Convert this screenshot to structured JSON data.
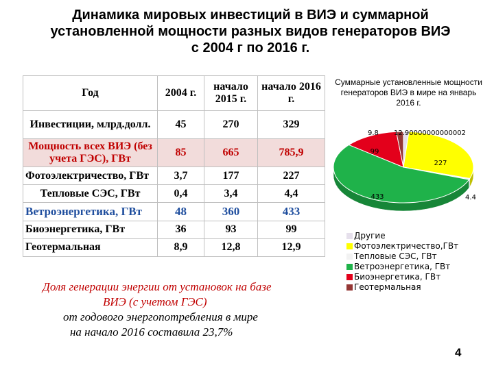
{
  "title": {
    "line1": "Динамика  мировых инвестиций в ВИЭ и суммарной",
    "line2": "установленной мощности разных видов генераторов ВИЭ",
    "line3": "с 2004 г по 2016 г."
  },
  "table": {
    "headers": [
      "Год",
      "2004 г.",
      "начало 2015 г.",
      "начало 2016 г."
    ],
    "rows": [
      {
        "label": "Инвестиции, млрд.долл.",
        "v2004": "45",
        "v2015": "270",
        "v2016": "329"
      },
      {
        "label": "Мощность всех ВИЭ (без учета ГЭС), ГВт",
        "v2004": "85",
        "v2015": "665",
        "v2016": "785,9"
      },
      {
        "label": "Фотоэлектричество, ГВт",
        "v2004": "3,7",
        "v2015": "177",
        "v2016": "227"
      },
      {
        "label": "Тепловые СЭС, ГВт",
        "v2004": "0,4",
        "v2015": "3,4",
        "v2016": "4,4"
      },
      {
        "label": "Ветроэнергетика, ГВт",
        "v2004": "48",
        "v2015": "360",
        "v2016": "433"
      },
      {
        "label": "Биоэнергетика, ГВт",
        "v2004": "36",
        "v2015": "93",
        "v2016": "99"
      },
      {
        "label": "Геотермальная",
        "v2004": "8,9",
        "v2015": "12,8",
        "v2016": "12,9"
      }
    ]
  },
  "note": {
    "line1": "Доля генерации энергии от установок на базе",
    "line2": "ВИЭ  (с учетом ГЭС)",
    "line3": "от годового энергопотребления в мире",
    "line4": "на начало 2016 составила 23,7%"
  },
  "page_number": "4",
  "chart_data": {
    "type": "pie",
    "title": "Суммарные установленные мощности генераторов ВИЭ  в мире на январь 2016 г.",
    "slices": [
      {
        "name": "Другие",
        "value": 9.8,
        "label": "9.8",
        "color": "#e6e0ec"
      },
      {
        "name": "Фотоэлектричество,ГВт",
        "value": 227,
        "label": "227",
        "color": "#ffff00"
      },
      {
        "name": "Тепловые СЭС, ГВт",
        "value": 4.4,
        "label": "4.4",
        "color": "#f2f2f2"
      },
      {
        "name": "Ветроэнергетика, ГВт",
        "value": 433,
        "label": "433",
        "color": "#1fb24a"
      },
      {
        "name": "Биоэнергетика, ГВт",
        "value": 99,
        "label": "99",
        "color": "#e3001b"
      },
      {
        "name": "Геотермальная",
        "value": 12.9,
        "label": "12.90000000000002",
        "color": "#953735"
      }
    ],
    "overlap_label_text": "9.800000000000002",
    "legend_position": "bottom"
  }
}
